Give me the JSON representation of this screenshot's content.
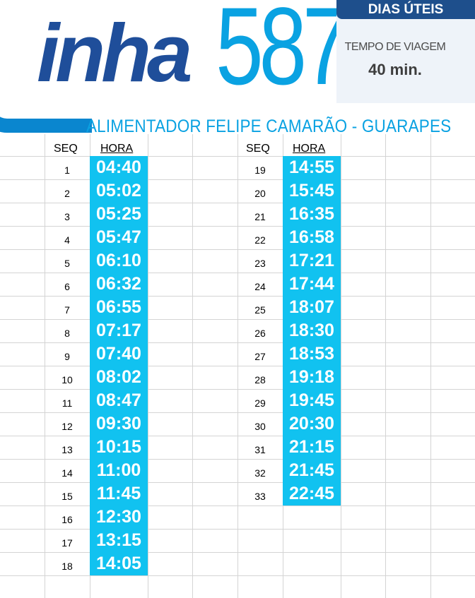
{
  "header": {
    "logo_text_1": "inha",
    "logo_text_2": "587",
    "schedule_type": "DIAS ÚTEIS",
    "travel_time_label": "TEMPO DE VIAGEM",
    "travel_time_value": "40 min.",
    "route_name": "ALIMENTADOR FELIPE CAMARÃO - GUARAPES"
  },
  "table": {
    "seq_header": "SEQ",
    "time_header": "HORA",
    "left": [
      {
        "seq": "1",
        "time": "04:40"
      },
      {
        "seq": "2",
        "time": "05:02"
      },
      {
        "seq": "3",
        "time": "05:25"
      },
      {
        "seq": "4",
        "time": "05:47"
      },
      {
        "seq": "5",
        "time": "06:10"
      },
      {
        "seq": "6",
        "time": "06:32"
      },
      {
        "seq": "7",
        "time": "06:55"
      },
      {
        "seq": "8",
        "time": "07:17"
      },
      {
        "seq": "9",
        "time": "07:40"
      },
      {
        "seq": "10",
        "time": "08:02"
      },
      {
        "seq": "11",
        "time": "08:47"
      },
      {
        "seq": "12",
        "time": "09:30"
      },
      {
        "seq": "13",
        "time": "10:15"
      },
      {
        "seq": "14",
        "time": "11:00"
      },
      {
        "seq": "15",
        "time": "11:45"
      },
      {
        "seq": "16",
        "time": "12:30"
      },
      {
        "seq": "17",
        "time": "13:15"
      },
      {
        "seq": "18",
        "time": "14:05"
      }
    ],
    "right": [
      {
        "seq": "19",
        "time": "14:55"
      },
      {
        "seq": "20",
        "time": "15:45"
      },
      {
        "seq": "21",
        "time": "16:35"
      },
      {
        "seq": "22",
        "time": "16:58"
      },
      {
        "seq": "23",
        "time": "17:21"
      },
      {
        "seq": "24",
        "time": "17:44"
      },
      {
        "seq": "25",
        "time": "18:07"
      },
      {
        "seq": "26",
        "time": "18:30"
      },
      {
        "seq": "27",
        "time": "18:53"
      },
      {
        "seq": "28",
        "time": "19:18"
      },
      {
        "seq": "29",
        "time": "19:45"
      },
      {
        "seq": "30",
        "time": "20:30"
      },
      {
        "seq": "31",
        "time": "21:15"
      },
      {
        "seq": "32",
        "time": "21:45"
      },
      {
        "seq": "33",
        "time": "22:45"
      }
    ]
  },
  "colors": {
    "accent": "#11c2f0",
    "brand_dark": "#1e4f8c",
    "brand_light": "#0aa2e2"
  }
}
